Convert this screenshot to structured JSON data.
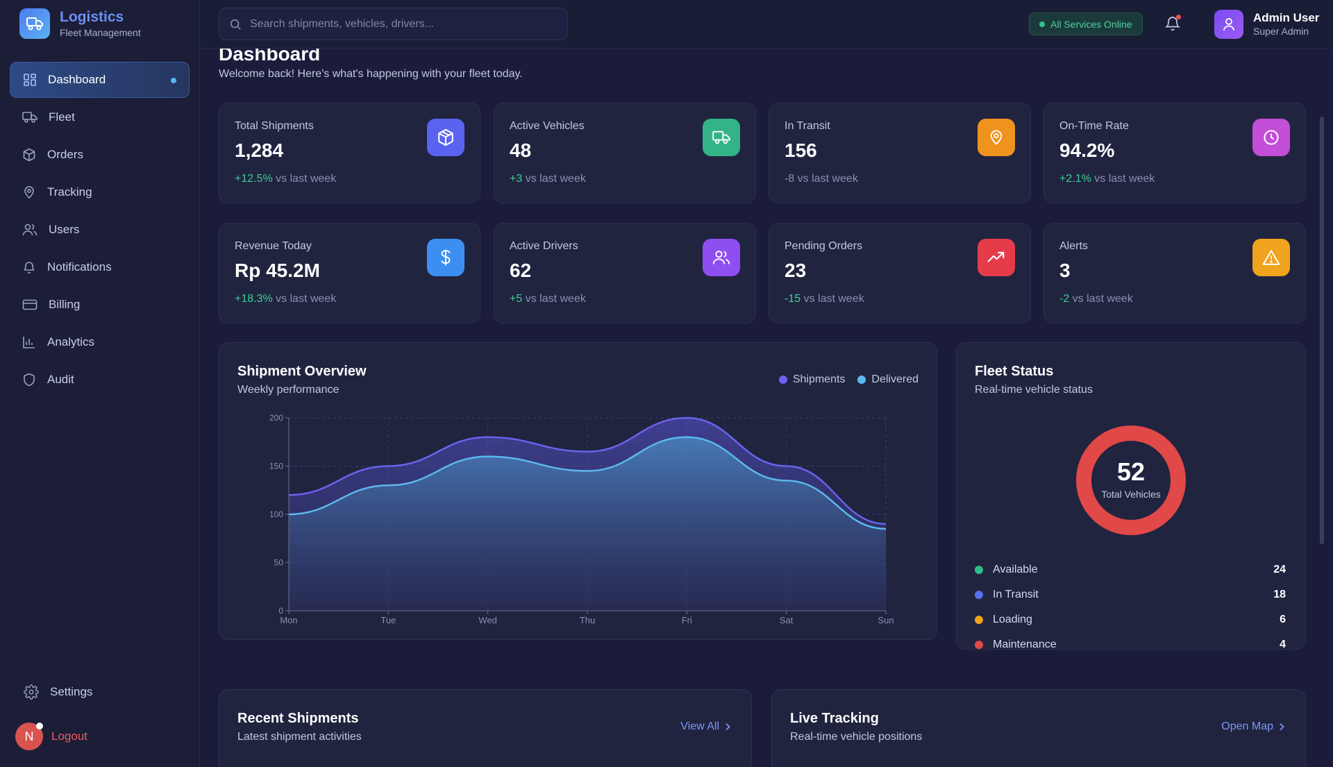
{
  "brand": {
    "title": "Logistics",
    "subtitle": "Fleet Management"
  },
  "sidebar": {
    "items": [
      {
        "label": "Dashboard",
        "icon": "grid-icon",
        "active": true
      },
      {
        "label": "Fleet",
        "icon": "truck-icon"
      },
      {
        "label": "Orders",
        "icon": "box-icon"
      },
      {
        "label": "Tracking",
        "icon": "map-pin-icon"
      },
      {
        "label": "Users",
        "icon": "users-icon"
      },
      {
        "label": "Notifications",
        "icon": "bell-icon"
      },
      {
        "label": "Billing",
        "icon": "credit-card-icon"
      },
      {
        "label": "Analytics",
        "icon": "bar-chart-icon"
      },
      {
        "label": "Audit",
        "icon": "shield-icon"
      }
    ],
    "settings_label": "Settings",
    "logout_label": "Logout",
    "avatar_initial": "N"
  },
  "topbar": {
    "search_placeholder": "Search shipments, vehicles, drivers...",
    "status_label": "All Services Online",
    "user_name": "Admin User",
    "user_role": "Super Admin"
  },
  "page": {
    "title": "Dashboard",
    "subtitle": "Welcome back! Here's what's happening with your fleet today."
  },
  "stats": [
    {
      "label": "Total Shipments",
      "value": "1,284",
      "change": "+12.5%",
      "change_suffix": " vs last week",
      "positive": true,
      "icon": "box-icon",
      "color": "#5a63f0"
    },
    {
      "label": "Active Vehicles",
      "value": "48",
      "change": "+3",
      "change_suffix": " vs last week",
      "positive": true,
      "icon": "truck-icon",
      "color": "#34b386"
    },
    {
      "label": "In Transit",
      "value": "156",
      "change": "-8",
      "change_suffix": " vs last week",
      "positive": false,
      "icon": "map-pin-icon",
      "color": "#f0921e"
    },
    {
      "label": "On-Time Rate",
      "value": "94.2%",
      "change": "+2.1%",
      "change_suffix": " vs last week",
      "positive": true,
      "icon": "clock-icon",
      "color": "#c34ed8"
    },
    {
      "label": "Revenue Today",
      "value": "Rp 45.2M",
      "change": "+18.3%",
      "change_suffix": " vs last week",
      "positive": true,
      "icon": "dollar-icon",
      "color": "#3c8ff0"
    },
    {
      "label": "Active Drivers",
      "value": "62",
      "change": "+5",
      "change_suffix": " vs last week",
      "positive": true,
      "icon": "users-icon",
      "color": "#8f4ff0"
    },
    {
      "label": "Pending Orders",
      "value": "23",
      "change": "-15",
      "change_suffix": " vs last week",
      "positive": true,
      "icon": "trending-up-icon",
      "color": "#e63c4a"
    },
    {
      "label": "Alerts",
      "value": "3",
      "change": "-2",
      "change_suffix": " vs last week",
      "positive": true,
      "icon": "alert-triangle-icon",
      "color": "#f0a31e"
    }
  ],
  "shipment_overview": {
    "title": "Shipment Overview",
    "subtitle": "Weekly performance",
    "legend": [
      {
        "name": "Shipments",
        "color": "#6a63ee"
      },
      {
        "name": "Delivered",
        "color": "#5cb8ee"
      }
    ]
  },
  "chart_data": {
    "type": "area",
    "categories": [
      "Mon",
      "Tue",
      "Wed",
      "Thu",
      "Fri",
      "Sat",
      "Sun"
    ],
    "series": [
      {
        "name": "Shipments",
        "values": [
          120,
          150,
          180,
          165,
          200,
          150,
          90
        ]
      },
      {
        "name": "Delivered",
        "values": [
          100,
          130,
          160,
          145,
          180,
          135,
          85
        ]
      }
    ],
    "yticks": [
      0,
      50,
      100,
      150,
      200
    ],
    "ylim": [
      0,
      200
    ],
    "grid": true,
    "legend": "top-right"
  },
  "fleet_status": {
    "title": "Fleet Status",
    "subtitle": "Real-time vehicle status",
    "total_value": "52",
    "total_label": "Total Vehicles",
    "items": [
      {
        "label": "Available",
        "count": "24",
        "color": "#2fbf86"
      },
      {
        "label": "In Transit",
        "count": "18",
        "color": "#5670f0"
      },
      {
        "label": "Loading",
        "count": "6",
        "color": "#f0a31e"
      },
      {
        "label": "Maintenance",
        "count": "4",
        "color": "#e14848"
      }
    ]
  },
  "recent_shipments": {
    "title": "Recent Shipments",
    "subtitle": "Latest shipment activities",
    "link": "View All"
  },
  "live_tracking": {
    "title": "Live Tracking",
    "subtitle": "Real-time vehicle positions",
    "link": "Open Map"
  }
}
